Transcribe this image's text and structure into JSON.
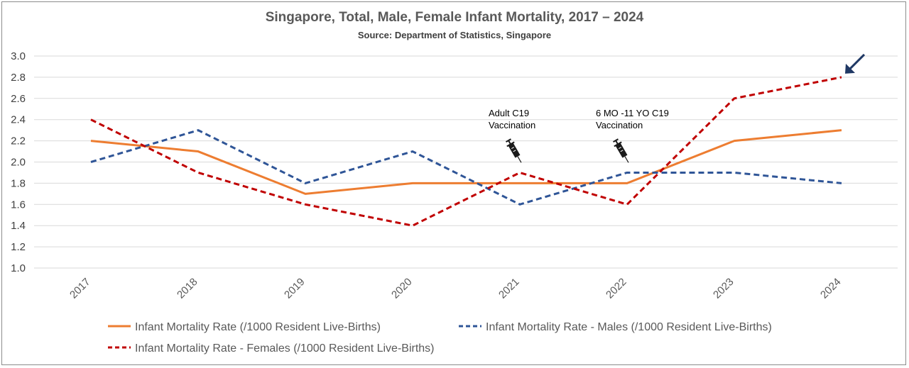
{
  "chart_data": {
    "type": "line",
    "title": "Singapore, Total, Male, Female Infant Mortality, 2017 – 2024",
    "subtitle": "Source: Department of Statistics, Singapore",
    "categories": [
      "2017",
      "2018",
      "2019",
      "2020",
      "2021",
      "2022",
      "2023",
      "2024"
    ],
    "ylim": [
      1.0,
      3.0
    ],
    "yticks": [
      "1.0",
      "1.2",
      "1.4",
      "1.6",
      "1.8",
      "2.0",
      "2.2",
      "2.4",
      "2.6",
      "2.8",
      "3.0"
    ],
    "grid": true,
    "legend_position": "bottom",
    "series": [
      {
        "name": "Infant Mortality Rate (/1000 Resident Live-Births)",
        "values": [
          2.2,
          2.1,
          1.7,
          1.8,
          1.8,
          1.8,
          2.2,
          2.3
        ],
        "color": "#ed7d31",
        "style": "solid"
      },
      {
        "name": "Infant Mortality Rate - Males (/1000 Resident Live-Births)",
        "values": [
          2.0,
          2.3,
          1.8,
          2.1,
          1.6,
          1.9,
          1.9,
          1.8
        ],
        "color": "#2f5597",
        "style": "dashed"
      },
      {
        "name": "Infant Mortality Rate - Females (/1000 Resident Live-Births)",
        "values": [
          2.4,
          1.9,
          1.6,
          1.4,
          1.9,
          1.6,
          2.6,
          2.8
        ],
        "color": "#c00000",
        "style": "dashed"
      }
    ],
    "annotations": [
      {
        "category": "2021",
        "lines": [
          "Adult C19",
          "Vaccination"
        ],
        "icon": "syringe-icon"
      },
      {
        "category": "2022",
        "lines": [
          "6 MO -11 YO C19",
          "Vaccination"
        ],
        "icon": "syringe-icon"
      }
    ],
    "highlight": {
      "category": "2024",
      "series_index": 2,
      "icon": "arrow-icon",
      "color": "#1f3864"
    }
  }
}
